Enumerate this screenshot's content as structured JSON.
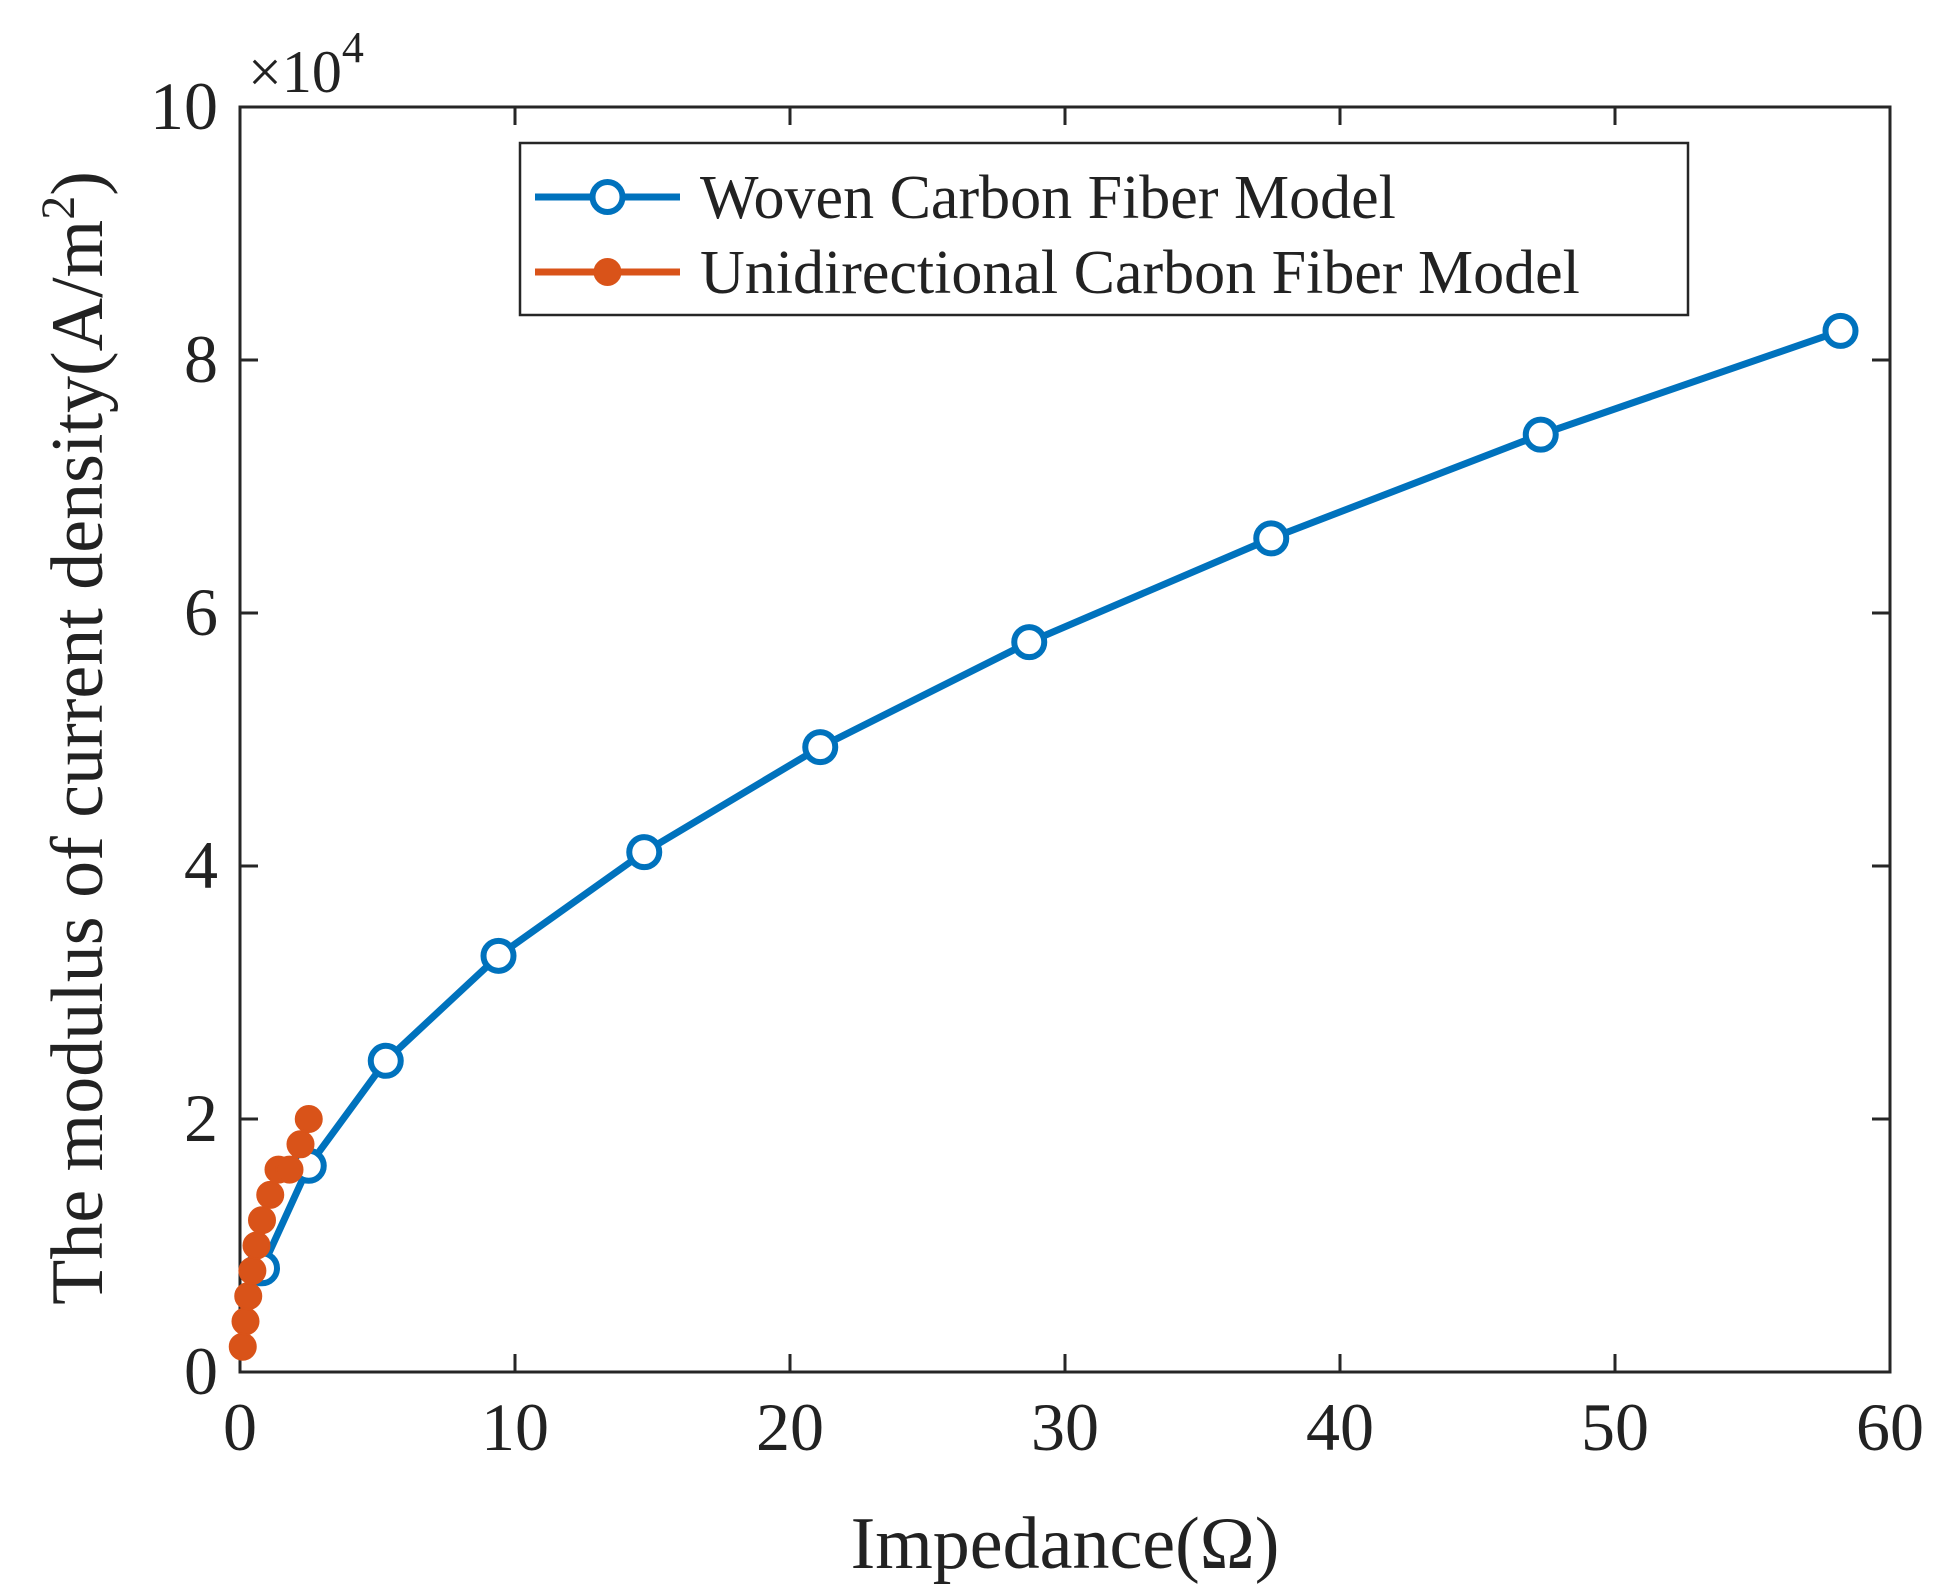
{
  "chart_data": {
    "type": "line",
    "xlabel": "Impedance(Ω)",
    "ylabel_main": "The modulus of current density(A/m",
    "ylabel_sup": "2",
    "ylabel_close": ")",
    "y_multiplier_prefix": "×10",
    "y_multiplier_exponent": "4",
    "xlim": [
      0,
      60
    ],
    "ylim": [
      0,
      10
    ],
    "x_ticks": [
      0,
      10,
      20,
      30,
      40,
      50,
      60
    ],
    "y_ticks": [
      0,
      2,
      4,
      6,
      8,
      10
    ],
    "grid": false,
    "legend_position": "top-center",
    "series": [
      {
        "name": "Woven Carbon Fiber Model",
        "color": "#0072BD",
        "marker": "open-circle",
        "x": [
          0.8,
          2.5,
          5.3,
          9.4,
          14.7,
          21.1,
          28.7,
          37.5,
          47.3,
          58.2
        ],
        "y": [
          0.82,
          1.63,
          2.46,
          3.29,
          4.11,
          4.94,
          5.77,
          6.59,
          7.41,
          8.23
        ]
      },
      {
        "name": "Unidirectional Carbon Fiber Model",
        "color": "#D95319",
        "marker": "filled-circle",
        "x": [
          0.1,
          0.2,
          0.3,
          0.45,
          0.6,
          0.8,
          1.1,
          1.4,
          1.8,
          2.2,
          2.5
        ],
        "y": [
          0.2,
          0.4,
          0.6,
          0.8,
          1.0,
          1.2,
          1.4,
          1.6,
          1.6,
          1.8,
          2.0
        ]
      }
    ]
  }
}
